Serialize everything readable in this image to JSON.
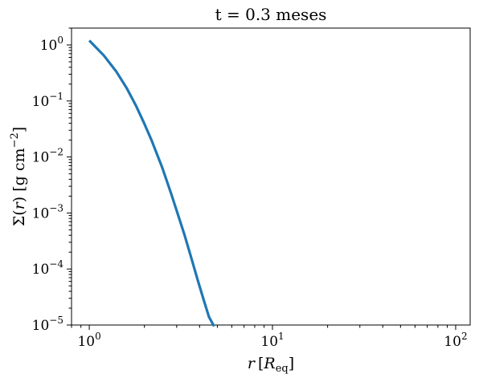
{
  "chart_data": {
    "type": "line",
    "title": "t = 0.3 meses",
    "xlabel": "r [R_eq]",
    "ylabel": "Σ(r) [g cm^−2]",
    "xscale": "log",
    "yscale": "log",
    "xlim": [
      0.8,
      120
    ],
    "ylim": [
      1e-05,
      2
    ],
    "grid": false,
    "x_ticks": [
      {
        "value": 1,
        "base": "10",
        "exp": "0"
      },
      {
        "value": 10,
        "base": "10",
        "exp": "1"
      },
      {
        "value": 100,
        "base": "10",
        "exp": "2"
      }
    ],
    "y_ticks": [
      {
        "value": 1,
        "base": "10",
        "exp": "0"
      },
      {
        "value": 0.1,
        "base": "10",
        "exp": "−1"
      },
      {
        "value": 0.01,
        "base": "10",
        "exp": "−2"
      },
      {
        "value": 0.001,
        "base": "10",
        "exp": "−3"
      },
      {
        "value": 0.0001,
        "base": "10",
        "exp": "−4"
      },
      {
        "value": 1e-05,
        "base": "10",
        "exp": "−5"
      }
    ],
    "series": [
      {
        "color": "#1f77b4",
        "x": [
          1.0,
          1.2,
          1.4,
          1.6,
          1.8,
          2.0,
          2.2,
          2.5,
          2.8,
          3.0,
          3.3,
          3.6,
          3.9,
          4.2,
          4.5,
          4.8
        ],
        "y": [
          1.2,
          0.65,
          0.34,
          0.17,
          0.082,
          0.039,
          0.019,
          0.0065,
          0.0022,
          0.0011,
          0.00042,
          0.00016,
          6.5e-05,
          2.9e-05,
          1.4e-05,
          9.5e-06
        ]
      }
    ]
  },
  "labels": {
    "title": "t = 0.3 meses",
    "xlabel_r": "r",
    "xlabel_open": "[",
    "xlabel_R": "R",
    "xlabel_sub": "eq",
    "xlabel_close": "]",
    "ylabel_sigma": "Σ(",
    "ylabel_r": "r",
    "ylabel_mid": ") [g cm",
    "ylabel_exp": "−2",
    "ylabel_close": "]"
  }
}
